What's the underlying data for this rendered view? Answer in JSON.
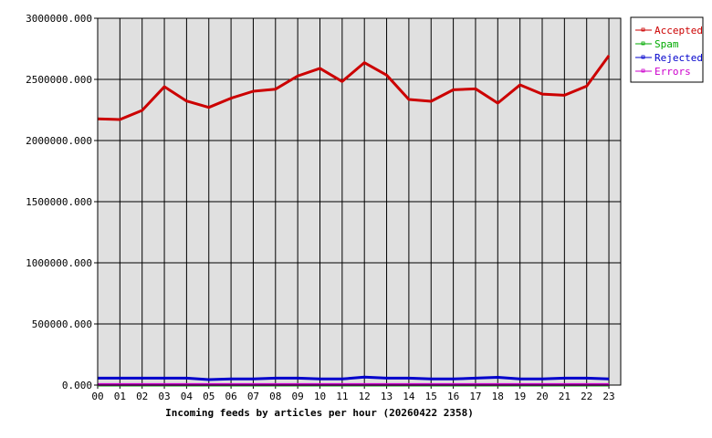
{
  "chart_data": {
    "type": "line",
    "title": "Incoming feeds by articles per hour (20260422 2358)",
    "categories": [
      "00",
      "01",
      "02",
      "03",
      "04",
      "05",
      "06",
      "07",
      "08",
      "09",
      "10",
      "11",
      "12",
      "13",
      "14",
      "15",
      "16",
      "17",
      "18",
      "19",
      "20",
      "21",
      "22",
      "23"
    ],
    "ylim": [
      0,
      3000000
    ],
    "yticks": [
      "0.000",
      "500000.000",
      "1000000.000",
      "1500000.000",
      "2000000.000",
      "2500000.000",
      "3000000.000"
    ],
    "ytick_values": [
      0,
      500000,
      1000000,
      1500000,
      2000000,
      2500000,
      3000000
    ],
    "grid": true,
    "legend_position": "right",
    "series": [
      {
        "name": "Accepted",
        "color": "#cc0000",
        "values": [
          2177000,
          2172000,
          2246000,
          2440000,
          2323000,
          2271000,
          2346000,
          2403000,
          2420000,
          2528000,
          2590000,
          2483000,
          2637000,
          2535000,
          2336000,
          2321000,
          2415000,
          2423000,
          2306000,
          2455000,
          2380000,
          2370000,
          2445000,
          2694000
        ]
      },
      {
        "name": "Spam",
        "color": "#00aa00",
        "values": [
          0,
          0,
          0,
          0,
          0,
          0,
          0,
          0,
          0,
          0,
          0,
          0,
          0,
          0,
          0,
          0,
          0,
          0,
          0,
          0,
          0,
          0,
          0,
          0
        ]
      },
      {
        "name": "Rejected",
        "color": "#0000cc",
        "values": [
          57000,
          57000,
          57000,
          57000,
          57000,
          45000,
          50000,
          50000,
          57000,
          57000,
          50000,
          50000,
          65000,
          57000,
          57000,
          50000,
          50000,
          57000,
          63000,
          50000,
          50000,
          57000,
          57000,
          50000
        ]
      },
      {
        "name": "Errors",
        "color": "#cc00cc",
        "values": [
          5000,
          5000,
          5000,
          5000,
          5000,
          5000,
          5000,
          5000,
          5000,
          5000,
          5000,
          5000,
          5000,
          5000,
          5000,
          5000,
          5000,
          5000,
          5000,
          5000,
          5000,
          5000,
          5000,
          5000
        ]
      }
    ],
    "plot_background": "#e0e0e0"
  }
}
